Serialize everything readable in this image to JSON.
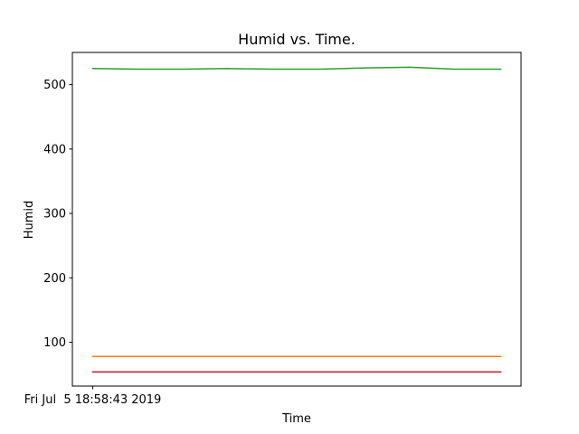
{
  "chart_data": {
    "type": "line",
    "title": "Humid vs. Time.",
    "xlabel": "Time",
    "ylabel": "Humid",
    "x": [
      0,
      1,
      2,
      3,
      4,
      5,
      6,
      7,
      8,
      9
    ],
    "x_tick_positions": [
      0
    ],
    "x_tick_labels": [
      "Fri Jul  5 18:58:43 2019"
    ],
    "xlim": [
      -0.45,
      9.45
    ],
    "ylim": [
      32,
      550
    ],
    "y_ticks": [
      100,
      200,
      300,
      400,
      500
    ],
    "grid": false,
    "series": [
      {
        "color": "#1f77b4",
        "values": [
          54,
          54,
          54,
          54,
          54,
          54,
          54,
          54,
          54,
          54
        ]
      },
      {
        "color": "#ff7f0e",
        "values": [
          78,
          78,
          78,
          78,
          78,
          78,
          78,
          78,
          78,
          78
        ]
      },
      {
        "color": "#2ca02c",
        "values": [
          525,
          524,
          524,
          525,
          524,
          524,
          526,
          527,
          524,
          524
        ]
      },
      {
        "color": "#d62728",
        "values": [
          54,
          54,
          54,
          54,
          54,
          54,
          54,
          54,
          54,
          54
        ]
      }
    ]
  }
}
